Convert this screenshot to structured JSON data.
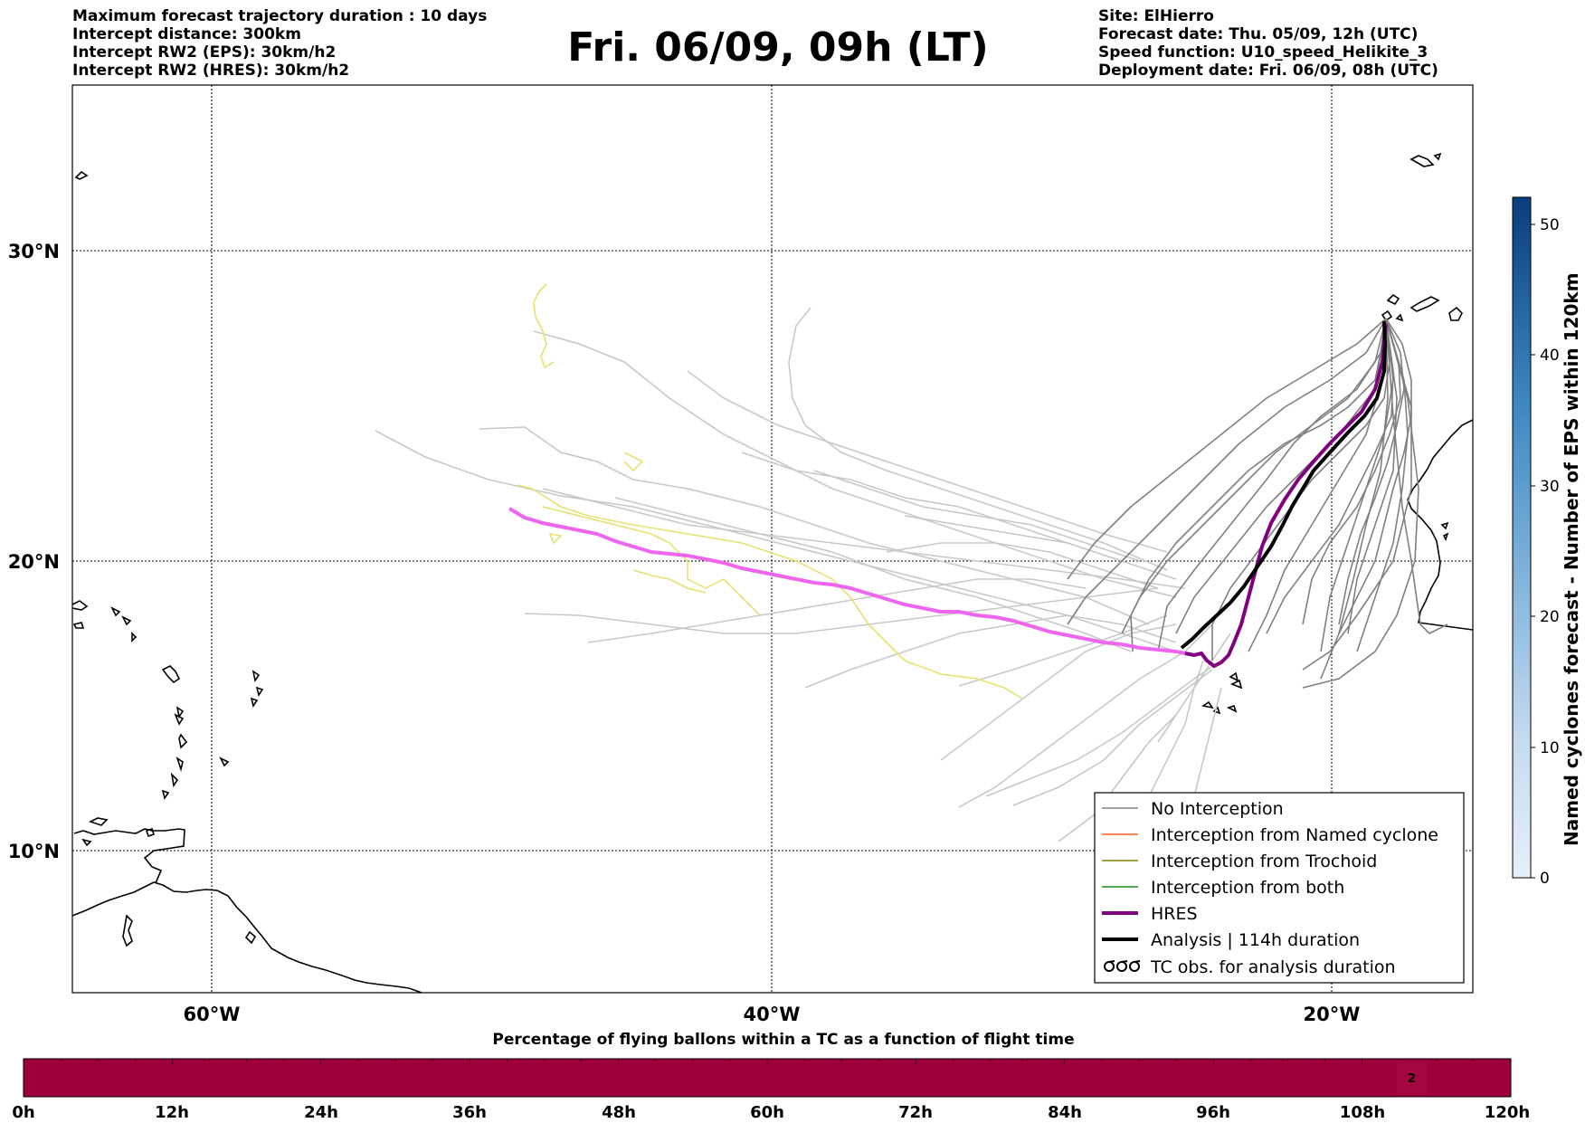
{
  "header": {
    "left_lines": [
      "Maximum forecast trajectory duration : 10 days",
      "Intercept distance: 300km",
      "Intercept RW2 (EPS):  30km/h2",
      "Intercept RW2 (HRES): 30km/h2"
    ],
    "title": "Fri. 06/09, 09h (LT)",
    "right_lines": [
      "Site: ElHierro",
      "Forecast date: Thu. 05/09, 12h (UTC)",
      "Speed function: U10_speed_Helikite_3",
      "Deployment date: Fri. 06/09, 08h (UTC)"
    ]
  },
  "map": {
    "lat_labels": [
      "30°N",
      "20°N",
      "10°N"
    ],
    "lon_labels": [
      "60°W",
      "40°W",
      "20°W"
    ],
    "gridlines": {
      "lat": [
        30,
        20,
        10
      ],
      "lon": [
        -60,
        -40,
        -20
      ]
    },
    "legend": [
      {
        "label": "No Interception",
        "color": "#808080"
      },
      {
        "label": "Interception from Named cyclone",
        "color": "#ff5a1a"
      },
      {
        "label": "Interception from Trochoid",
        "color": "#808000"
      },
      {
        "label": "Interception from both",
        "color": "#1a8c1a"
      },
      {
        "label": "HRES",
        "color": "#800080"
      },
      {
        "label": "Analysis | 114h duration",
        "color": "#000000"
      },
      {
        "label": "TC obs. for analysis duration",
        "icon": "tc-symbol-icon"
      }
    ],
    "colors": {
      "no_interception": "#808080",
      "far_ensemble": "#c8c8c8",
      "yellow_ensemble": "#e8e070",
      "hres": "#800080",
      "hres_forecast": "#ee66ee",
      "analysis": "#000000",
      "coast": "#000000"
    }
  },
  "colorbar": {
    "label": "Named cyclones forecast - Number of EPS within 120km",
    "ticks": [
      "0",
      "10",
      "20",
      "30",
      "40",
      "50"
    ],
    "min": 0,
    "max": 52,
    "color_low": "#e6eff9",
    "color_high": "#0b3d7d"
  },
  "timeline": {
    "title": "Percentage of flying ballons within a TC as a function of flight time",
    "ticks": [
      "0h",
      "12h",
      "24h",
      "36h",
      "48h",
      "60h",
      "72h",
      "84h",
      "96h",
      "108h",
      "120h"
    ],
    "bar_color": "#9b003b",
    "annotation": "2",
    "annotation_hour": 112
  }
}
